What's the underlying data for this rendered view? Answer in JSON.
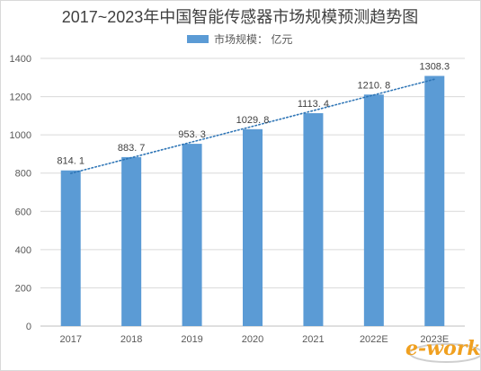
{
  "chart_data": {
    "type": "bar",
    "title": "2017~2023年中国智能传感器市场规模预测趋势图",
    "legend": {
      "label": "市场规模： 亿元",
      "position": "top"
    },
    "categories": [
      "2017",
      "2018",
      "2019",
      "2020",
      "2021",
      "2022E",
      "2023E"
    ],
    "series": [
      {
        "name": "市场规模： 亿元",
        "values": [
          814.1,
          883.7,
          953.3,
          1029.8,
          1113.4,
          1210.8,
          1308.3
        ],
        "color": "#5b9bd5"
      }
    ],
    "data_labels": [
      "814. 1",
      "883. 7",
      "953. 3",
      "1029. 8",
      "1113. 4",
      "1210. 8",
      "1308.3"
    ],
    "trendline": {
      "type": "linear",
      "style": "dotted",
      "color": "#2e75b6"
    },
    "ylim": [
      0,
      1400
    ],
    "yticks": [
      0,
      200,
      400,
      600,
      800,
      1000,
      1200,
      1400
    ],
    "grid": true
  },
  "watermark": {
    "text": "e-works",
    "color": "#f0a020"
  }
}
